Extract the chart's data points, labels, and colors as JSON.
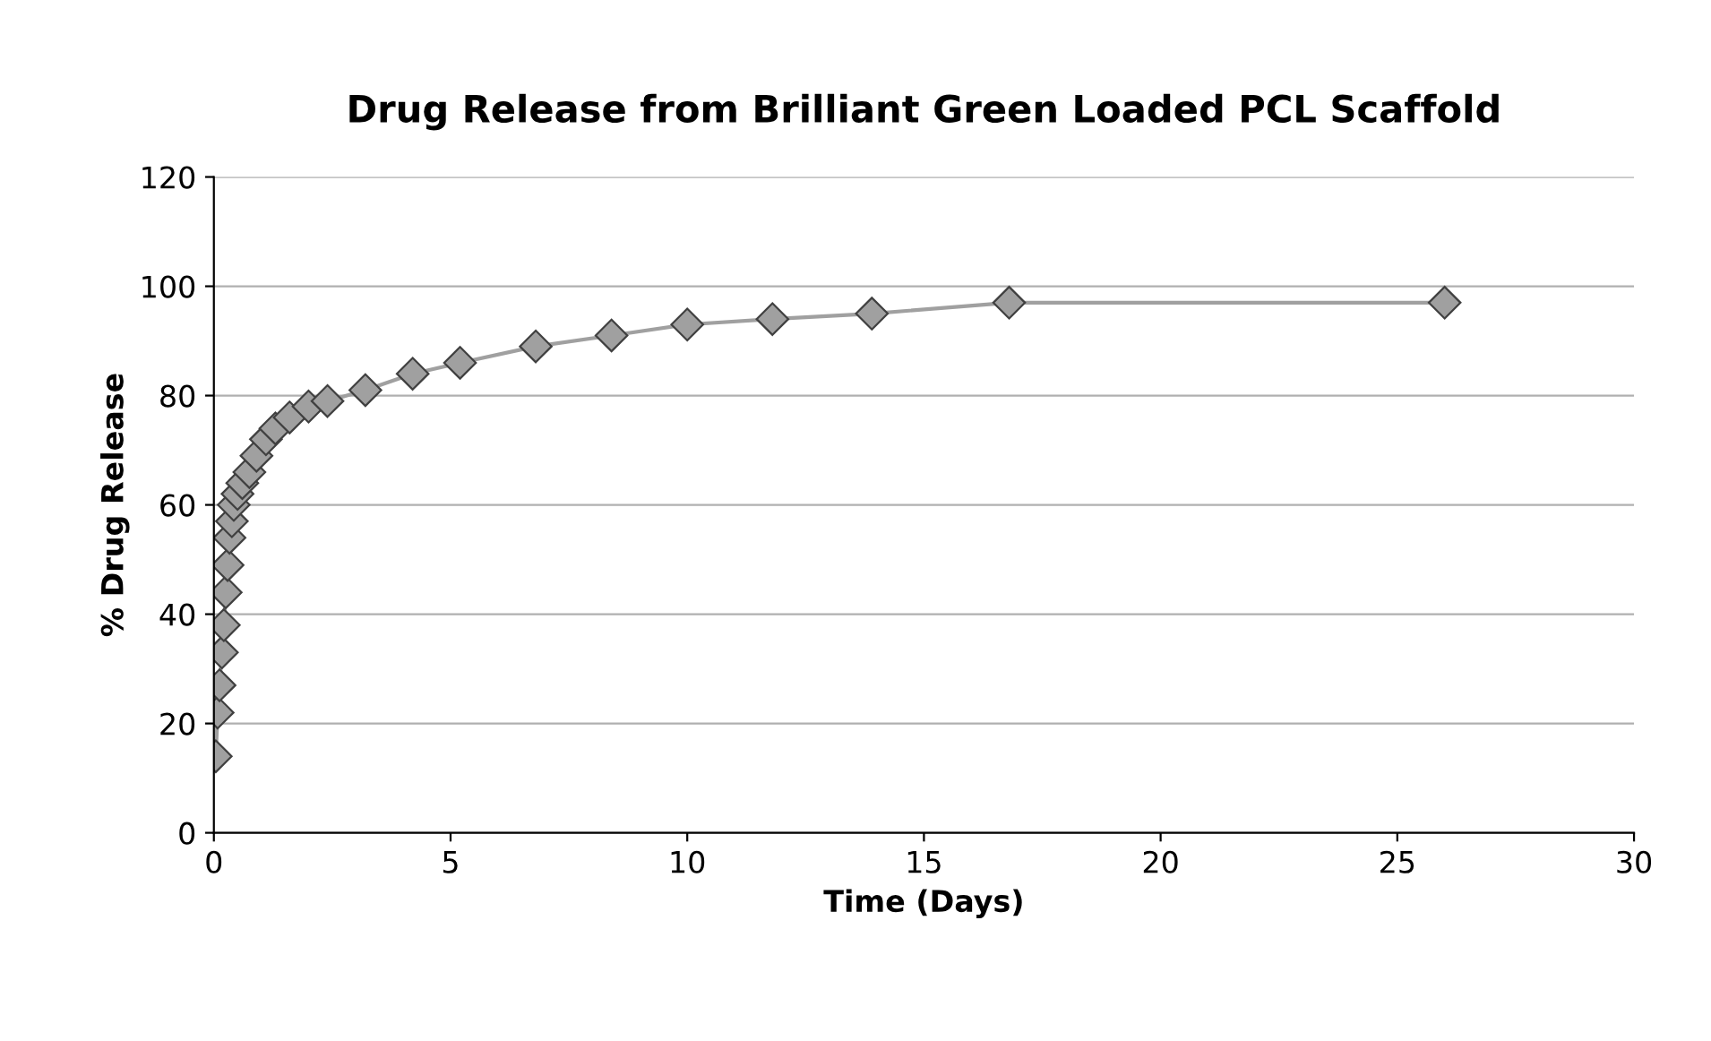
{
  "chart_data": {
    "type": "line",
    "title": "Drug Release from Brilliant Green Loaded PCL Scaffold",
    "xlabel": "Time (Days)",
    "ylabel": "% Drug Release",
    "series": [
      {
        "color": "#a0a0a0",
        "x": [
          0.04,
          0.08,
          0.12,
          0.17,
          0.21,
          0.25,
          0.29,
          0.33,
          0.38,
          0.42,
          0.5,
          0.6,
          0.75,
          0.9,
          1.1,
          1.3,
          1.6,
          2,
          2.4,
          3.2,
          4.2,
          5.2,
          6.8,
          8.4,
          10,
          11.8,
          13.9,
          16.8,
          26
        ],
        "values": [
          14,
          22,
          27,
          33,
          38,
          44,
          49,
          54,
          57,
          60,
          62,
          64,
          66,
          69,
          72,
          74,
          76,
          78,
          79,
          81,
          84,
          86,
          89,
          91,
          93,
          94,
          95,
          97,
          97
        ]
      }
    ],
    "xlim": [
      0,
      30
    ],
    "xticks": [
      0,
      5,
      10,
      15,
      20,
      25,
      30
    ],
    "ylim": [
      0,
      120
    ],
    "yticks": [
      0,
      20,
      40,
      60,
      80,
      100,
      120
    ],
    "grid": "y",
    "marker": "diamond",
    "line_style": "solid",
    "legend": false
  }
}
